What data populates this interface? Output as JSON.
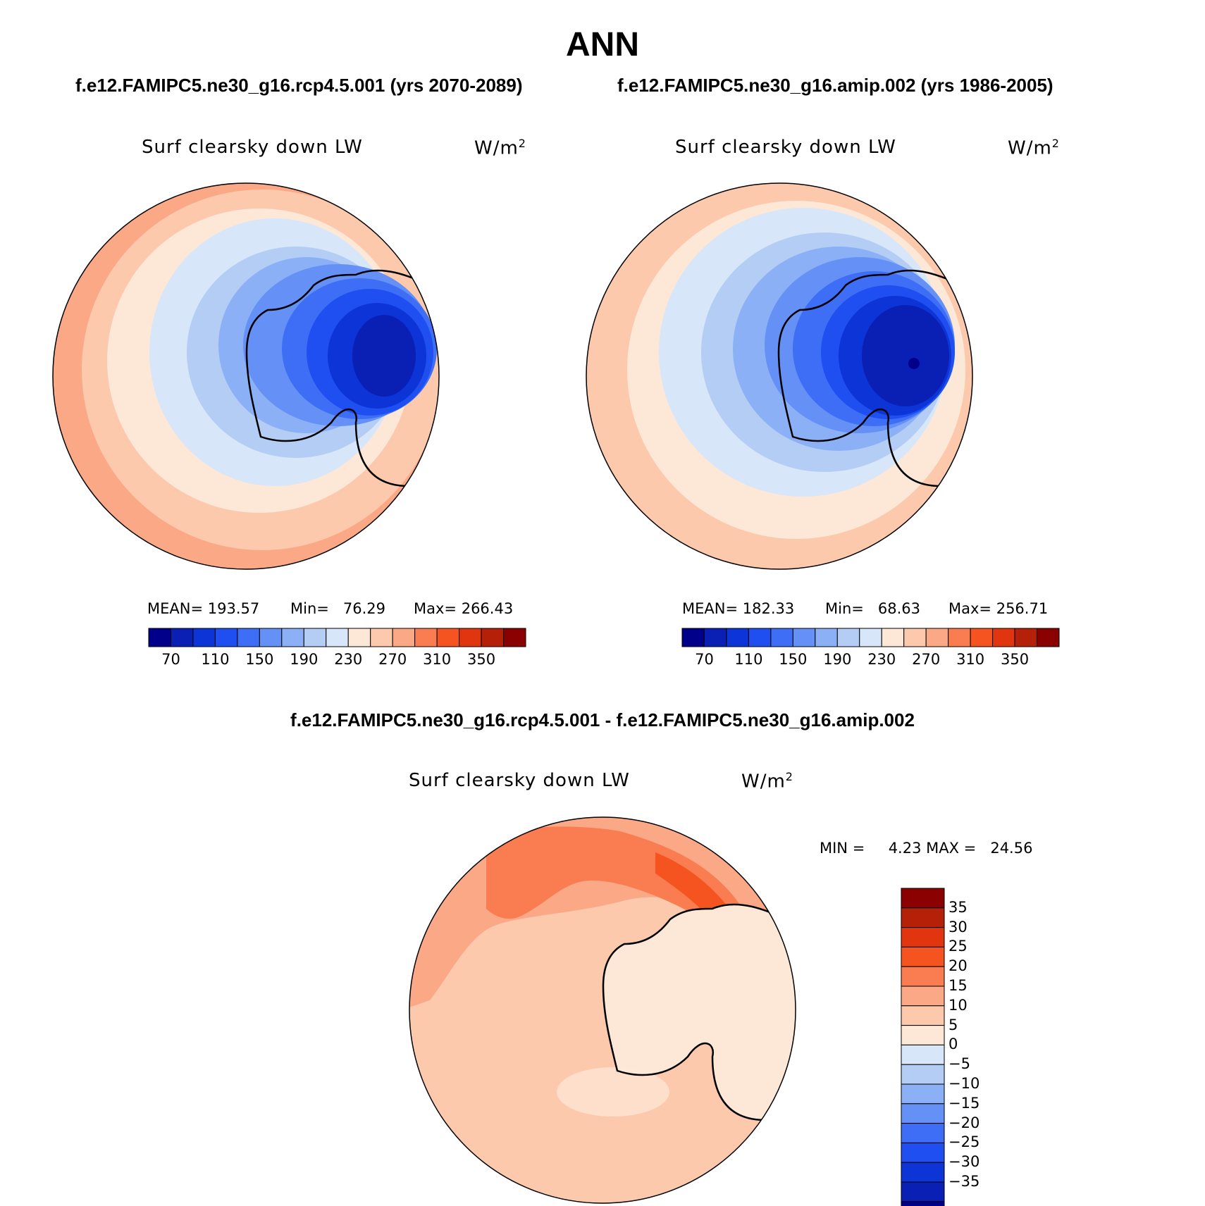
{
  "main_title": "ANN",
  "panels": {
    "left": {
      "case": "f.e12.FAMIPC5.ne30_g16.rcp4.5.001 (yrs 2070-2089)",
      "variable": "Surf clearsky down LW",
      "units_base": "W/m",
      "units_exp": "2",
      "mean_label": "MEAN=",
      "mean": "193.57",
      "min_label": "Min=",
      "min": "76.29",
      "max_label": "Max=",
      "max": "266.43"
    },
    "right": {
      "case": "f.e12.FAMIPC5.ne30_g16.amip.002 (yrs 1986-2005)",
      "variable": "Surf clearsky down LW",
      "units_base": "W/m",
      "units_exp": "2",
      "mean_label": "MEAN=",
      "mean": "182.33",
      "min_label": "Min=",
      "min": "68.63",
      "max_label": "Max=",
      "max": "256.71"
    },
    "diff": {
      "title": "f.e12.FAMIPC5.ne30_g16.rcp4.5.001 - f.e12.FAMIPC5.ne30_g16.amip.002",
      "variable": "Surf clearsky down LW",
      "units_base": "W/m",
      "units_exp": "2",
      "min_label": "MIN =",
      "min": "4.23",
      "max_label": "MAX =",
      "max": "24.56"
    }
  },
  "colorbar_abs": {
    "colors": [
      "#00008b",
      "#0a1fb4",
      "#0d34d6",
      "#1f4ff0",
      "#3d6ef5",
      "#6590f5",
      "#8cb0f5",
      "#b4cdf5",
      "#d7e6f8",
      "#fde8d8",
      "#fcc9ad",
      "#fba887",
      "#f97d50",
      "#f5531f",
      "#e1350f",
      "#b52008",
      "#8b0000"
    ],
    "labels": [
      "70",
      "110",
      "150",
      "190",
      "230",
      "270",
      "310",
      "350"
    ]
  },
  "colorbar_diff": {
    "colors": [
      "#8b0000",
      "#b52008",
      "#e1350f",
      "#f5531f",
      "#f97d50",
      "#fba887",
      "#fcc9ad",
      "#fde8d8",
      "#d7e6f8",
      "#b4cdf5",
      "#8cb0f5",
      "#6590f5",
      "#3d6ef5",
      "#1f4ff0",
      "#0d34d6",
      "#0a1fb4",
      "#00008b"
    ],
    "labels": [
      "35",
      "30",
      "25",
      "20",
      "15",
      "10",
      "5",
      "0",
      "−5",
      "−10",
      "−15",
      "−20",
      "−25",
      "−30",
      "−35"
    ]
  }
}
